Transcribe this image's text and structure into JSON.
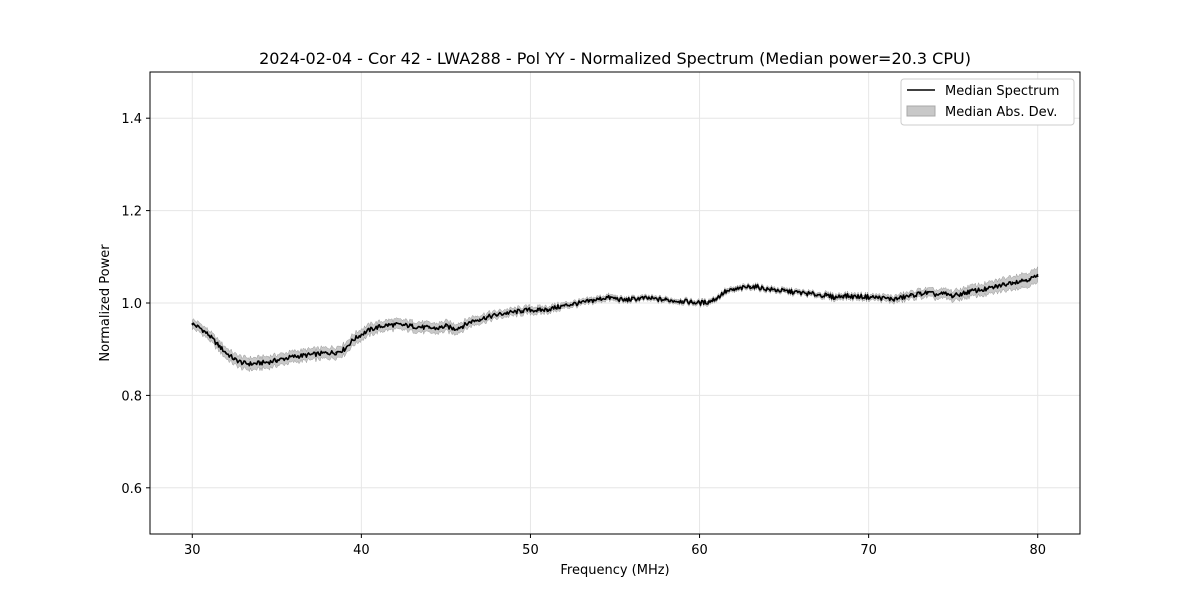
{
  "chart_data": {
    "type": "line",
    "title": "2024-02-04 - Cor 42 - LWA288 - Pol YY - Normalized Spectrum (Median power=20.3 CPU)",
    "xlabel": "Frequency (MHz)",
    "ylabel": "Normalized Power",
    "xlim": [
      27.5,
      82.5
    ],
    "ylim": [
      0.5,
      1.5
    ],
    "xticks": [
      30,
      40,
      50,
      60,
      70,
      80
    ],
    "yticks": [
      0.6,
      0.8,
      1.0,
      1.2,
      1.4
    ],
    "xtick_labels": [
      "30",
      "40",
      "50",
      "60",
      "70",
      "80"
    ],
    "ytick_labels": [
      "0.6",
      "0.8",
      "1.0",
      "1.2",
      "1.4"
    ],
    "grid": true,
    "legend": {
      "placement": "top-right",
      "entries": [
        "Median Spectrum",
        "Median Abs. Dev."
      ]
    },
    "series": [
      {
        "name": "Median Spectrum",
        "color": "#000000",
        "x": [
          30.0,
          30.5,
          31.0,
          31.5,
          32.0,
          32.5,
          33.0,
          33.5,
          34.0,
          34.5,
          35.0,
          35.5,
          36.0,
          36.5,
          37.0,
          37.5,
          38.0,
          38.5,
          39.0,
          39.5,
          40.0,
          40.5,
          41.0,
          41.5,
          42.0,
          42.5,
          43.0,
          43.5,
          44.0,
          44.5,
          45.0,
          45.5,
          46.0,
          46.5,
          47.0,
          47.5,
          48.0,
          48.5,
          49.0,
          49.5,
          50.0,
          50.5,
          51.0,
          51.5,
          52.0,
          52.5,
          53.0,
          53.5,
          54.0,
          54.5,
          55.0,
          55.5,
          56.0,
          56.5,
          57.0,
          57.5,
          58.0,
          58.5,
          59.0,
          59.5,
          60.0,
          60.5,
          61.0,
          61.5,
          62.0,
          62.5,
          63.0,
          63.5,
          64.0,
          64.5,
          65.0,
          65.5,
          66.0,
          66.5,
          67.0,
          67.5,
          68.0,
          68.5,
          69.0,
          69.5,
          70.0,
          70.5,
          71.0,
          71.5,
          72.0,
          72.5,
          73.0,
          73.5,
          74.0,
          74.5,
          75.0,
          75.5,
          76.0,
          76.5,
          77.0,
          77.5,
          78.0,
          78.5,
          79.0,
          79.5,
          80.0
        ],
        "y": [
          0.955,
          0.945,
          0.93,
          0.91,
          0.892,
          0.878,
          0.87,
          0.868,
          0.87,
          0.872,
          0.876,
          0.88,
          0.884,
          0.886,
          0.888,
          0.89,
          0.892,
          0.893,
          0.9,
          0.92,
          0.932,
          0.942,
          0.948,
          0.952,
          0.953,
          0.952,
          0.95,
          0.948,
          0.946,
          0.945,
          0.95,
          0.944,
          0.95,
          0.96,
          0.965,
          0.97,
          0.974,
          0.978,
          0.98,
          0.983,
          0.985,
          0.984,
          0.986,
          0.99,
          0.994,
          0.998,
          1.0,
          1.004,
          1.008,
          1.012,
          1.01,
          1.006,
          1.008,
          1.01,
          1.01,
          1.008,
          1.007,
          1.005,
          1.004,
          1.002,
          1.0,
          1.002,
          1.01,
          1.024,
          1.028,
          1.032,
          1.036,
          1.034,
          1.03,
          1.028,
          1.026,
          1.024,
          1.022,
          1.02,
          1.018,
          1.016,
          1.012,
          1.016,
          1.014,
          1.014,
          1.013,
          1.012,
          1.01,
          1.008,
          1.012,
          1.016,
          1.02,
          1.022,
          1.018,
          1.02,
          1.015,
          1.02,
          1.025,
          1.028,
          1.03,
          1.035,
          1.04,
          1.045,
          1.048,
          1.052,
          1.058
        ]
      },
      {
        "name": "Median Abs. Dev.",
        "color": "#c8c8c8",
        "type": "band",
        "half_width": [
          0.01,
          0.01,
          0.01,
          0.011,
          0.012,
          0.012,
          0.013,
          0.013,
          0.013,
          0.013,
          0.012,
          0.012,
          0.012,
          0.012,
          0.012,
          0.012,
          0.012,
          0.012,
          0.012,
          0.012,
          0.012,
          0.012,
          0.011,
          0.011,
          0.011,
          0.011,
          0.011,
          0.011,
          0.011,
          0.011,
          0.011,
          0.011,
          0.01,
          0.01,
          0.009,
          0.009,
          0.008,
          0.008,
          0.008,
          0.008,
          0.008,
          0.008,
          0.007,
          0.007,
          0.006,
          0.006,
          0.006,
          0.006,
          0.006,
          0.006,
          0.006,
          0.005,
          0.005,
          0.005,
          0.005,
          0.005,
          0.005,
          0.005,
          0.005,
          0.005,
          0.005,
          0.005,
          0.005,
          0.005,
          0.005,
          0.005,
          0.005,
          0.005,
          0.005,
          0.005,
          0.005,
          0.005,
          0.005,
          0.005,
          0.005,
          0.006,
          0.006,
          0.006,
          0.006,
          0.006,
          0.006,
          0.006,
          0.007,
          0.007,
          0.008,
          0.008,
          0.009,
          0.009,
          0.01,
          0.01,
          0.011,
          0.011,
          0.012,
          0.012,
          0.013,
          0.013,
          0.014,
          0.014,
          0.015,
          0.015,
          0.016
        ]
      }
    ]
  }
}
